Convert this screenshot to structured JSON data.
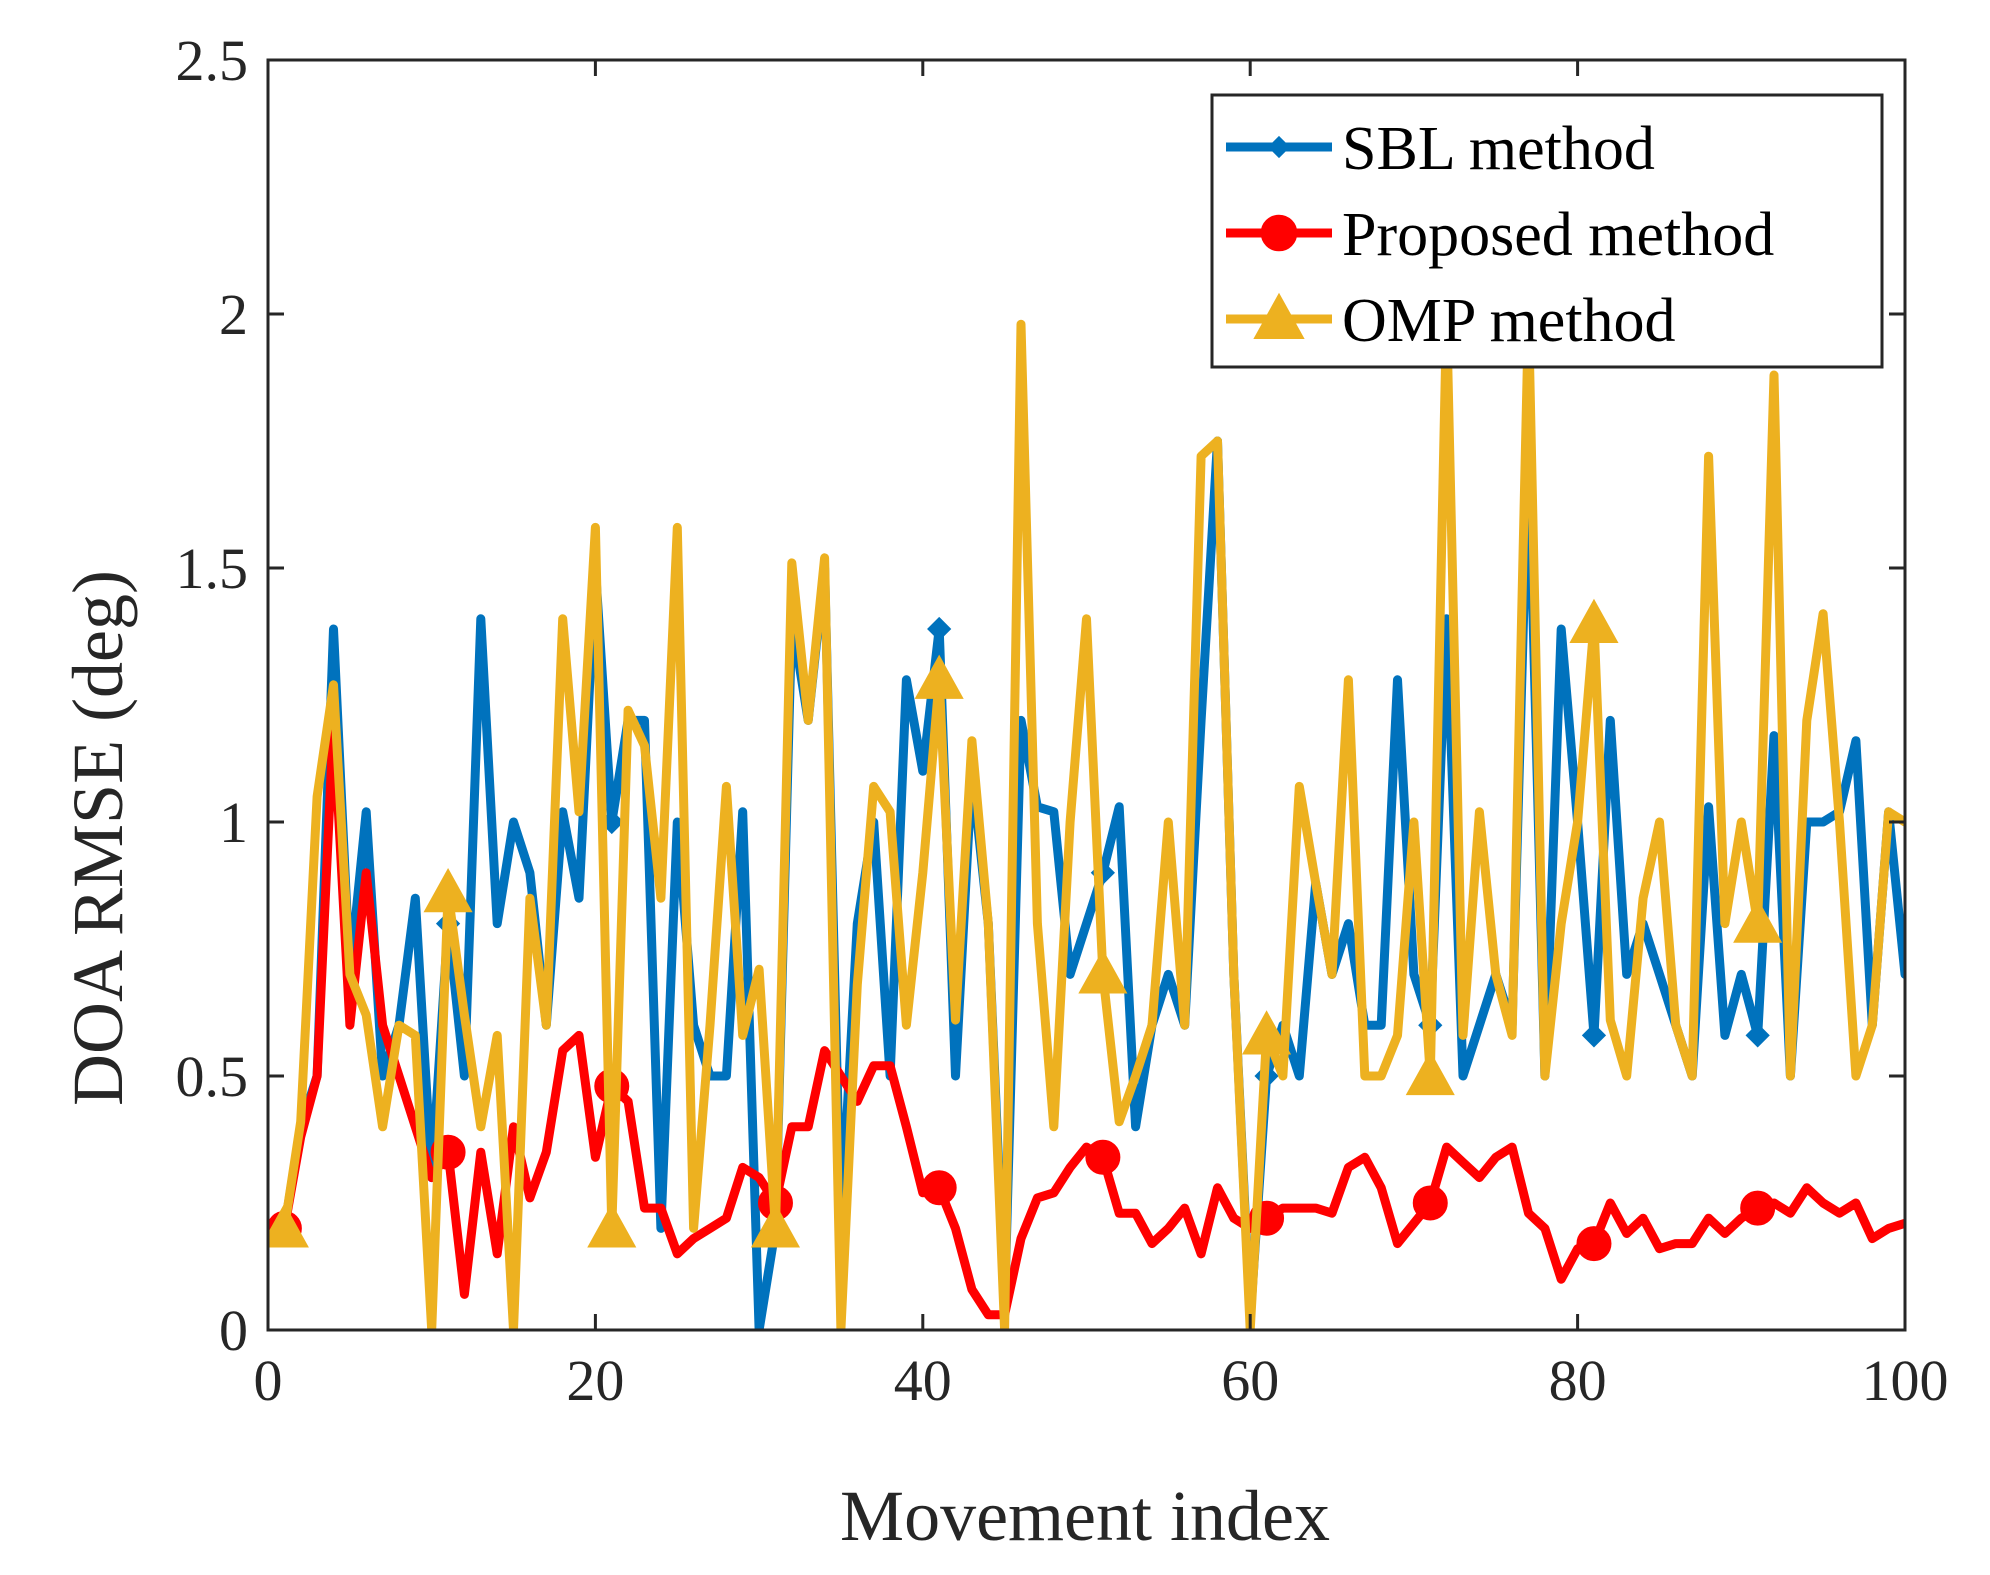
{
  "chart_data": {
    "type": "line",
    "title": "",
    "xlabel": "Movement index",
    "ylabel": "DOA RMSE (deg)",
    "xlim": [
      0,
      100
    ],
    "ylim": [
      0,
      2.5
    ],
    "xticks": [
      0,
      20,
      40,
      60,
      80,
      100
    ],
    "xtick_labels": [
      "0",
      "20",
      "40",
      "60",
      "80",
      "100"
    ],
    "yticks": [
      0,
      0.5,
      1,
      1.5,
      2,
      2.5
    ],
    "ytick_labels": [
      "0",
      "0.5",
      "1",
      "1.5",
      "2",
      "2.5"
    ],
    "grid": false,
    "legend_position": "top-right",
    "marker_interval": 10,
    "x": [
      1,
      2,
      3,
      4,
      5,
      6,
      7,
      8,
      9,
      10,
      11,
      12,
      13,
      14,
      15,
      16,
      17,
      18,
      19,
      20,
      21,
      22,
      23,
      24,
      25,
      26,
      27,
      28,
      29,
      30,
      31,
      32,
      33,
      34,
      35,
      36,
      37,
      38,
      39,
      40,
      41,
      42,
      43,
      44,
      45,
      46,
      47,
      48,
      49,
      50,
      51,
      52,
      53,
      54,
      55,
      56,
      57,
      58,
      59,
      60,
      61,
      62,
      63,
      64,
      65,
      66,
      67,
      68,
      69,
      70,
      71,
      72,
      73,
      74,
      75,
      76,
      77,
      78,
      79,
      80,
      81,
      82,
      83,
      84,
      85,
      86,
      87,
      88,
      89,
      90,
      91,
      92,
      93,
      94,
      95,
      96,
      97,
      98,
      99,
      100
    ],
    "series": [
      {
        "name": "SBL method",
        "color": "#0072BD",
        "marker": "diamond",
        "values": [
          0.2,
          0.4,
          0.5,
          1.38,
          0.7,
          1.02,
          0.5,
          0.6,
          0.85,
          0.3,
          0.8,
          0.5,
          1.4,
          0.8,
          1.0,
          0.9,
          0.6,
          1.02,
          0.85,
          1.5,
          1.0,
          1.2,
          1.2,
          0.2,
          1.0,
          0.6,
          0.5,
          0.5,
          1.02,
          0.0,
          0.2,
          1.4,
          1.2,
          1.5,
          0.2,
          0.8,
          1.0,
          0.5,
          1.28,
          1.1,
          1.38,
          0.5,
          1.1,
          0.8,
          0.05,
          1.2,
          1.03,
          1.02,
          0.7,
          0.8,
          0.9,
          1.03,
          0.4,
          0.6,
          0.7,
          0.6,
          1.2,
          1.75,
          0.7,
          0.02,
          0.5,
          0.6,
          0.5,
          0.88,
          0.7,
          0.8,
          0.6,
          0.6,
          1.28,
          0.7,
          0.6,
          1.4,
          0.5,
          0.6,
          0.7,
          0.6,
          1.75,
          0.5,
          1.38,
          1.0,
          0.58,
          1.2,
          0.7,
          0.8,
          0.7,
          0.6,
          0.5,
          1.03,
          0.58,
          0.7,
          0.58,
          1.17,
          0.5,
          1.0,
          1.0,
          1.02,
          1.16,
          0.6,
          1.02,
          0.7
        ]
      },
      {
        "name": "Proposed method",
        "color": "#FF0000",
        "marker": "circle",
        "values": [
          0.2,
          0.38,
          0.5,
          1.2,
          0.6,
          0.9,
          0.6,
          0.5,
          0.4,
          0.3,
          0.35,
          0.07,
          0.35,
          0.15,
          0.4,
          0.26,
          0.35,
          0.55,
          0.58,
          0.34,
          0.48,
          0.45,
          0.24,
          0.24,
          0.15,
          0.18,
          0.2,
          0.22,
          0.32,
          0.3,
          0.25,
          0.4,
          0.4,
          0.55,
          0.5,
          0.45,
          0.52,
          0.52,
          0.4,
          0.27,
          0.28,
          0.2,
          0.08,
          0.03,
          0.03,
          0.18,
          0.26,
          0.27,
          0.32,
          0.36,
          0.34,
          0.23,
          0.23,
          0.17,
          0.2,
          0.24,
          0.15,
          0.28,
          0.22,
          0.2,
          0.22,
          0.24,
          0.24,
          0.24,
          0.23,
          0.32,
          0.34,
          0.28,
          0.17,
          0.21,
          0.25,
          0.36,
          0.33,
          0.3,
          0.34,
          0.36,
          0.23,
          0.2,
          0.1,
          0.16,
          0.17,
          0.25,
          0.19,
          0.22,
          0.16,
          0.17,
          0.17,
          0.22,
          0.19,
          0.22,
          0.24,
          0.25,
          0.23,
          0.28,
          0.25,
          0.23,
          0.25,
          0.18,
          0.2,
          0.21
        ]
      },
      {
        "name": "OMP method",
        "color": "#EDB120",
        "marker": "triangle",
        "values": [
          0.2,
          0.41,
          1.05,
          1.27,
          0.7,
          0.62,
          0.4,
          0.6,
          0.58,
          0.0,
          0.86,
          0.62,
          0.4,
          0.58,
          0.0,
          0.85,
          0.6,
          1.4,
          1.02,
          1.58,
          0.2,
          1.22,
          1.15,
          0.85,
          1.58,
          0.2,
          0.6,
          1.07,
          0.58,
          0.71,
          0.2,
          1.51,
          1.2,
          1.52,
          0.0,
          0.68,
          1.07,
          1.02,
          0.6,
          0.9,
          1.28,
          0.61,
          1.16,
          0.8,
          0.0,
          1.98,
          0.8,
          0.4,
          1.0,
          1.4,
          0.7,
          0.41,
          0.5,
          0.6,
          1.0,
          0.6,
          1.72,
          1.75,
          0.7,
          0.0,
          0.58,
          0.5,
          1.07,
          0.88,
          0.7,
          1.28,
          0.5,
          0.5,
          0.58,
          1.0,
          0.5,
          2.0,
          0.58,
          1.02,
          0.7,
          0.58,
          2.0,
          0.5,
          0.8,
          1.0,
          1.39,
          0.61,
          0.5,
          0.85,
          1.0,
          0.6,
          0.5,
          1.72,
          0.8,
          1.0,
          0.8,
          1.88,
          0.5,
          1.2,
          1.41,
          1.0,
          0.5,
          0.6,
          1.02,
          1.0
        ]
      }
    ]
  }
}
